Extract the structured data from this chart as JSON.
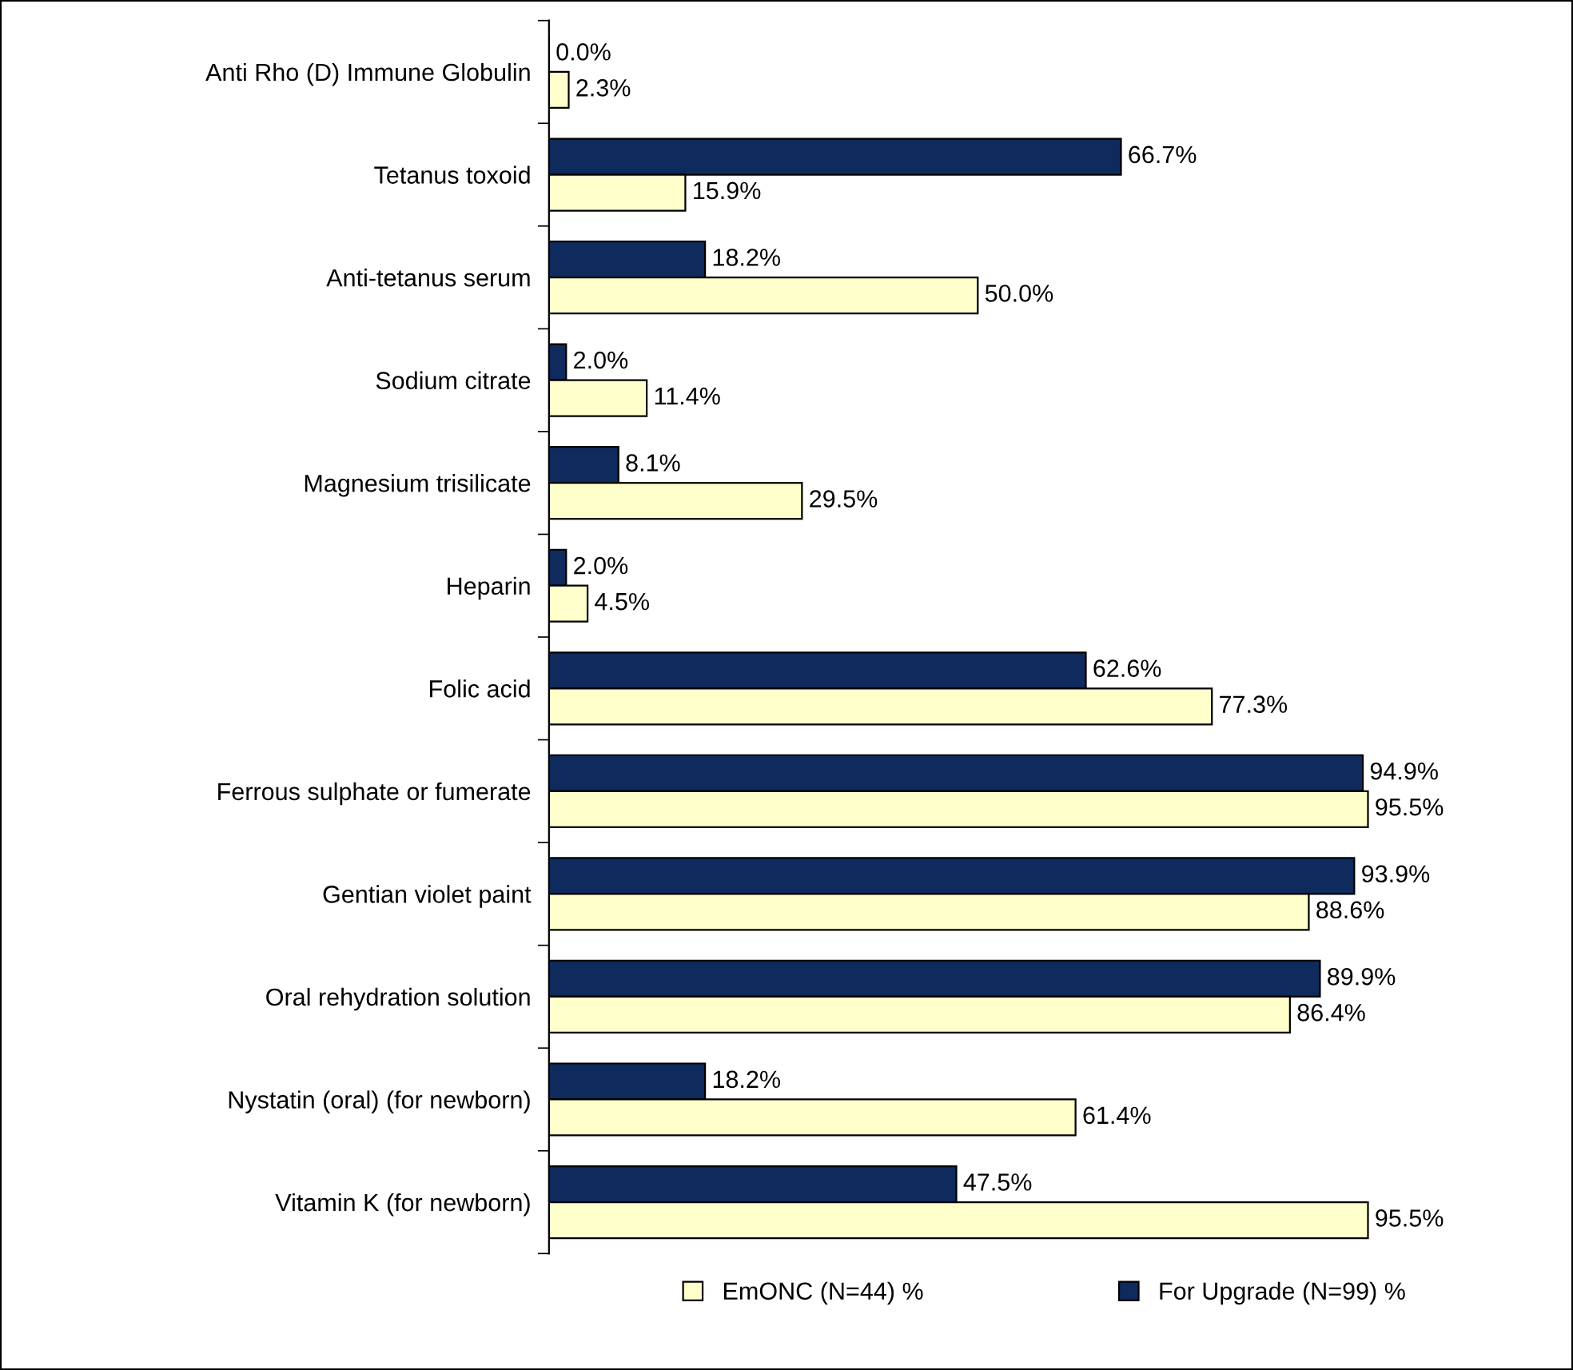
{
  "chart_data": {
    "type": "bar",
    "orientation": "horizontal",
    "categories": [
      "Anti Rho (D) Immune Globulin",
      "Tetanus toxoid",
      "Anti-tetanus serum",
      "Sodium citrate",
      "Magnesium trisilicate",
      "Heparin",
      "Folic acid",
      "Ferrous sulphate or fumerate",
      "Gentian violet paint",
      "Oral rehydration solution",
      "Nystatin (oral) (for newborn)",
      "Vitamin K (for newborn)"
    ],
    "series": [
      {
        "name": "For Upgrade (N=99) %",
        "color": "#0f2a5c",
        "values": [
          0.0,
          66.7,
          18.2,
          2.0,
          8.1,
          2.0,
          62.6,
          94.9,
          93.9,
          89.9,
          18.2,
          47.5
        ],
        "value_labels": [
          "0.0%",
          "66.7%",
          "18.2%",
          "2.0%",
          "8.1%",
          "2.0%",
          "62.6%",
          "94.9%",
          "93.9%",
          "89.9%",
          "18.2%",
          "47.5%"
        ]
      },
      {
        "name": "EmONC (N=44) %",
        "color": "#ffffcc",
        "values": [
          2.3,
          15.9,
          50.0,
          11.4,
          29.5,
          4.5,
          77.3,
          95.5,
          88.6,
          86.4,
          61.4,
          95.5
        ],
        "value_labels": [
          "2.3%",
          "15.9%",
          "50.0%",
          "11.4%",
          "29.5%",
          "4.5%",
          "77.3%",
          "95.5%",
          "88.6%",
          "86.4%",
          "61.4%",
          "95.5%"
        ]
      }
    ],
    "legend": "bottom",
    "grid": false
  }
}
